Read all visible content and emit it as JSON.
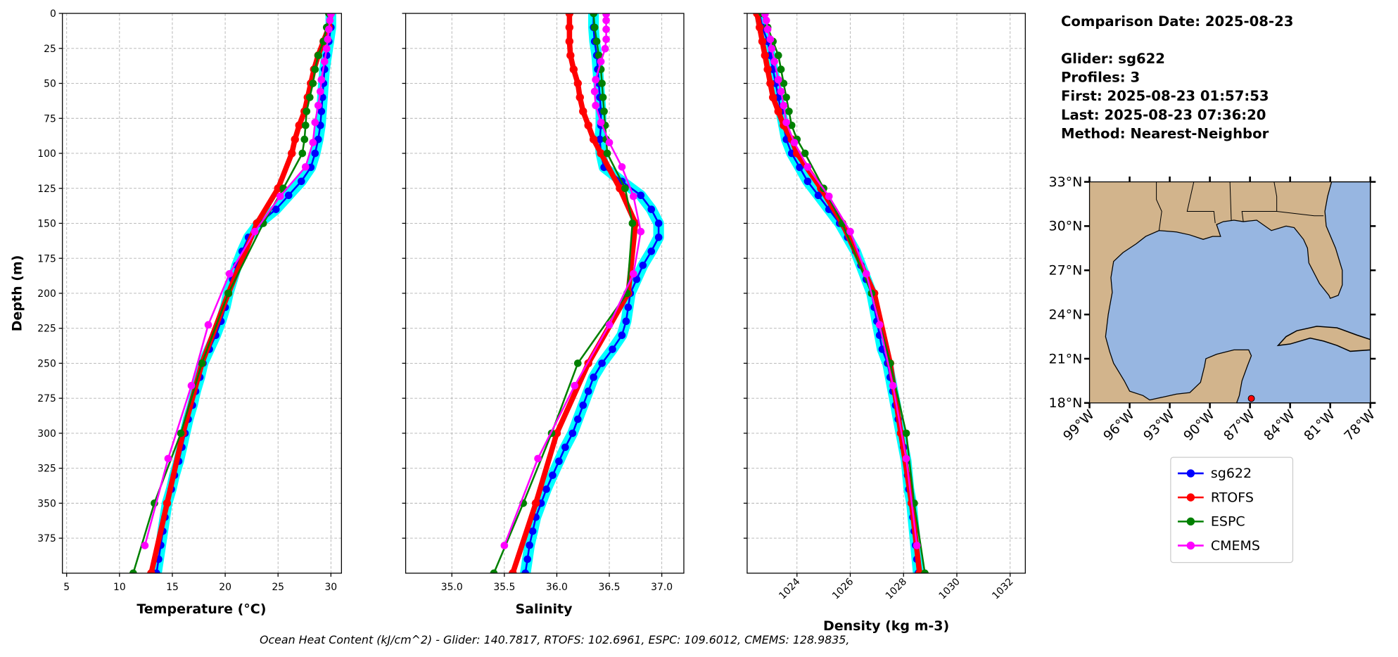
{
  "info": {
    "comparison_date": "Comparison Date: 2025-08-23",
    "glider": "Glider: sg622",
    "profiles": "Profiles: 3",
    "first": "First: 2025-08-23 01:57:53",
    "last": "Last: 2025-08-23 07:36:20",
    "method": "Method: Nearest-Neighbor"
  },
  "footer": "Ocean Heat Content (kJ/cm^2) - Glider: 140.7817,  RTOFS: 102.6961,  ESPC: 109.6012,  CMEMS: 128.9835,",
  "colors": {
    "sg622": "#0000ff",
    "sg622_halo": "#00ffff",
    "RTOFS": "#ff0000",
    "ESPC": "#008000",
    "CMEMS": "#ff00ff",
    "land": "#d2b48c",
    "water": "#97b6e1",
    "grid": "#b0b0b0"
  },
  "legend": {
    "placement": "below-map",
    "entries": [
      "sg622",
      "RTOFS",
      "ESPC",
      "CMEMS"
    ]
  },
  "chart_data": [
    {
      "type": "line",
      "xlabel": "Temperature (°C)",
      "ylabel": "Depth (m)",
      "xlim": [
        4.6,
        31.0
      ],
      "ylim": [
        400,
        0
      ],
      "xticks": [
        "5",
        "10",
        "15",
        "20",
        "25",
        "30"
      ],
      "yticks": [
        "0",
        "25",
        "50",
        "75",
        "100",
        "125",
        "150",
        "175",
        "200",
        "225",
        "250",
        "275",
        "300",
        "325",
        "350",
        "375"
      ],
      "grid": true,
      "series": [
        {
          "name": "sg622",
          "depth": [
            0,
            10,
            20,
            30,
            40,
            50,
            60,
            70,
            80,
            90,
            100,
            110,
            120,
            130,
            140,
            150,
            160,
            170,
            180,
            190,
            200,
            210,
            220,
            230,
            240,
            250,
            260,
            270,
            280,
            290,
            300,
            310,
            320,
            330,
            340,
            350,
            360,
            370,
            380,
            390,
            400
          ],
          "values": [
            30.0,
            30.0,
            29.8,
            29.6,
            29.4,
            29.3,
            29.2,
            29.1,
            29.0,
            28.8,
            28.5,
            28.1,
            27.2,
            26.0,
            24.8,
            23.2,
            22.2,
            21.6,
            21.1,
            20.7,
            20.3,
            20.0,
            19.6,
            19.1,
            18.5,
            17.9,
            17.6,
            17.2,
            16.9,
            16.5,
            16.2,
            15.9,
            15.6,
            15.2,
            14.9,
            14.5,
            14.3,
            14.1,
            13.9,
            13.7,
            13.5
          ]
        },
        {
          "name": "RTOFS",
          "depth": [
            0,
            10,
            20,
            30,
            40,
            50,
            60,
            70,
            80,
            90,
            100,
            125,
            150,
            200,
            250,
            300,
            350,
            400
          ],
          "values": [
            30.0,
            29.8,
            29.3,
            28.8,
            28.4,
            28.1,
            27.8,
            27.5,
            27.0,
            26.6,
            26.3,
            25.0,
            23.0,
            20.3,
            17.8,
            16.0,
            14.5,
            13.0
          ]
        },
        {
          "name": "ESPC",
          "depth": [
            0,
            10,
            20,
            30,
            40,
            50,
            60,
            70,
            80,
            90,
            100,
            125,
            150,
            200,
            250,
            300,
            350,
            400
          ],
          "values": [
            29.8,
            29.6,
            29.3,
            28.8,
            28.5,
            28.3,
            28.0,
            27.7,
            27.6,
            27.5,
            27.3,
            25.5,
            23.6,
            20.3,
            17.8,
            15.8,
            13.3,
            11.3
          ]
        },
        {
          "name": "CMEMS",
          "depth": [
            0.5,
            5,
            11.4,
            18.5,
            25.2,
            34.4,
            47.4,
            55.8,
            65.8,
            77.9,
            92.3,
            109.7,
            130.7,
            155.9,
            186.1,
            222.5,
            266.0,
            318.1,
            380.2
          ],
          "values": [
            30.0,
            29.9,
            29.8,
            29.7,
            29.6,
            29.4,
            29.1,
            29.0,
            28.8,
            28.5,
            28.3,
            27.6,
            25.2,
            22.8,
            20.4,
            18.4,
            16.8,
            14.6,
            12.4
          ]
        }
      ]
    },
    {
      "type": "line",
      "xlabel": "Salinity",
      "xlim": [
        34.56,
        37.21
      ],
      "ylim": [
        400,
        0
      ],
      "xticks": [
        "35.0",
        "35.5",
        "36.0",
        "36.5",
        "37.0"
      ],
      "grid": true,
      "series": [
        {
          "name": "sg622",
          "depth": [
            0,
            10,
            20,
            30,
            40,
            50,
            60,
            70,
            80,
            90,
            100,
            110,
            120,
            130,
            140,
            150,
            160,
            170,
            180,
            190,
            200,
            210,
            220,
            230,
            240,
            250,
            260,
            270,
            280,
            290,
            300,
            310,
            320,
            330,
            340,
            350,
            360,
            370,
            380,
            390,
            400
          ],
          "values": [
            36.35,
            36.35,
            36.36,
            36.38,
            36.39,
            36.4,
            36.41,
            36.42,
            36.42,
            36.41,
            36.42,
            36.45,
            36.62,
            36.8,
            36.9,
            36.97,
            36.97,
            36.9,
            36.82,
            36.76,
            36.7,
            36.68,
            36.66,
            36.62,
            36.53,
            36.43,
            36.35,
            36.3,
            36.25,
            36.2,
            36.15,
            36.08,
            36.02,
            35.96,
            35.9,
            35.85,
            35.8,
            35.77,
            35.74,
            35.72,
            35.7
          ]
        },
        {
          "name": "RTOFS",
          "depth": [
            0,
            10,
            20,
            30,
            40,
            50,
            60,
            70,
            80,
            90,
            100,
            125,
            150,
            200,
            250,
            300,
            350,
            400
          ],
          "values": [
            36.12,
            36.12,
            36.12,
            36.13,
            36.16,
            36.2,
            36.22,
            36.25,
            36.3,
            36.35,
            36.42,
            36.6,
            36.75,
            36.68,
            36.3,
            36.0,
            35.8,
            35.58
          ]
        },
        {
          "name": "ESPC",
          "depth": [
            0,
            10,
            20,
            30,
            40,
            50,
            60,
            70,
            80,
            90,
            100,
            125,
            150,
            200,
            250,
            300,
            350,
            400
          ],
          "values": [
            36.35,
            36.36,
            36.38,
            36.4,
            36.42,
            36.43,
            36.44,
            36.45,
            36.46,
            36.47,
            36.48,
            36.65,
            36.72,
            36.67,
            36.2,
            35.95,
            35.68,
            35.4
          ]
        },
        {
          "name": "CMEMS",
          "depth": [
            0.5,
            5,
            11.4,
            18.5,
            25.2,
            34.4,
            47.4,
            55.8,
            65.8,
            77.9,
            92.3,
            109.7,
            130.7,
            155.9,
            186.1,
            222.5,
            266.0,
            318.1,
            380.2
          ],
          "values": [
            36.47,
            36.47,
            36.47,
            36.47,
            36.46,
            36.42,
            36.37,
            36.36,
            36.37,
            36.42,
            36.5,
            36.62,
            36.73,
            36.8,
            36.73,
            36.5,
            36.17,
            35.82,
            35.5
          ]
        }
      ]
    },
    {
      "type": "line",
      "xlabel": "Density (kg m-3)",
      "xlim": [
        1022.13,
        1032.57
      ],
      "ylim": [
        400,
        0
      ],
      "xticks": [
        "1024",
        "1026",
        "1028",
        "1030",
        "1032"
      ],
      "grid": true,
      "series": [
        {
          "name": "sg622",
          "depth": [
            0,
            10,
            20,
            30,
            40,
            50,
            60,
            70,
            80,
            90,
            100,
            110,
            120,
            130,
            140,
            150,
            160,
            170,
            180,
            190,
            200,
            210,
            220,
            230,
            240,
            250,
            260,
            270,
            280,
            290,
            300,
            310,
            320,
            330,
            340,
            350,
            360,
            370,
            380,
            390,
            400
          ],
          "values": [
            1022.6,
            1022.7,
            1022.9,
            1023.0,
            1023.1,
            1023.2,
            1023.3,
            1023.4,
            1023.5,
            1023.6,
            1023.8,
            1024.1,
            1024.4,
            1024.8,
            1025.2,
            1025.6,
            1025.9,
            1026.2,
            1026.4,
            1026.6,
            1026.8,
            1026.9,
            1027.0,
            1027.1,
            1027.2,
            1027.4,
            1027.5,
            1027.6,
            1027.7,
            1027.8,
            1027.9,
            1028.0,
            1028.1,
            1028.15,
            1028.2,
            1028.3,
            1028.35,
            1028.4,
            1028.45,
            1028.5,
            1028.55
          ]
        },
        {
          "name": "RTOFS",
          "depth": [
            0,
            10,
            20,
            30,
            40,
            50,
            60,
            70,
            80,
            90,
            100,
            125,
            150,
            200,
            250,
            300,
            350,
            400
          ],
          "values": [
            1022.5,
            1022.6,
            1022.7,
            1022.8,
            1022.9,
            1023.0,
            1023.1,
            1023.3,
            1023.5,
            1023.8,
            1024.0,
            1024.9,
            1025.7,
            1026.9,
            1027.5,
            1027.9,
            1028.3,
            1028.6
          ]
        },
        {
          "name": "ESPC",
          "depth": [
            0,
            10,
            20,
            30,
            40,
            50,
            60,
            70,
            80,
            90,
            100,
            125,
            150,
            200,
            250,
            300,
            350,
            400
          ],
          "values": [
            1022.7,
            1022.9,
            1023.1,
            1023.3,
            1023.4,
            1023.5,
            1023.6,
            1023.7,
            1023.8,
            1024.0,
            1024.3,
            1025.0,
            1025.7,
            1026.8,
            1027.5,
            1028.1,
            1028.4,
            1028.8
          ]
        },
        {
          "name": "CMEMS",
          "depth": [
            0.5,
            5,
            11.4,
            18.5,
            25.2,
            34.4,
            47.4,
            55.8,
            65.8,
            77.9,
            92.3,
            109.7,
            130.7,
            155.9,
            186.1,
            222.5,
            266.0,
            318.1,
            380.2
          ],
          "values": [
            1022.8,
            1022.85,
            1022.9,
            1023.0,
            1023.05,
            1023.15,
            1023.3,
            1023.4,
            1023.5,
            1023.6,
            1023.9,
            1024.4,
            1025.2,
            1026.0,
            1026.6,
            1027.1,
            1027.6,
            1028.1,
            1028.5
          ]
        }
      ]
    }
  ],
  "map": {
    "lon_range": [
      -99,
      -78
    ],
    "lat_range": [
      18,
      33
    ],
    "lon_ticks": [
      "99°W",
      "96°W",
      "93°W",
      "90°W",
      "87°W",
      "84°W",
      "81°W",
      "78°W"
    ],
    "lat_ticks": [
      "18°N",
      "21°N",
      "24°N",
      "27°N",
      "30°N",
      "33°N"
    ],
    "glider_location": {
      "lon": -86.9,
      "lat": 18.3
    }
  }
}
